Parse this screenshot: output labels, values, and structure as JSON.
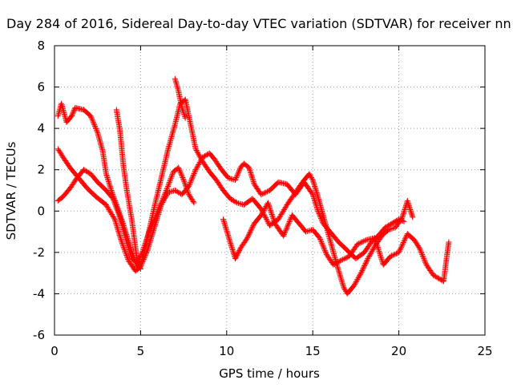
{
  "chart_data": {
    "type": "scatter",
    "title": "Day 284 of 2016, Sidereal Day-to-day VTEC variation (SDTVAR) for receiver nn",
    "xlabel": "GPS time / hours",
    "ylabel": "SDTVAR / TECUs",
    "xlim": [
      0,
      25
    ],
    "ylim": [
      -6,
      8
    ],
    "xticks": [
      "0",
      "5",
      "10",
      "15",
      "20",
      "25"
    ],
    "yticks": [
      "-6",
      "-4",
      "-2",
      "0",
      "2",
      "4",
      "6",
      "8"
    ],
    "grid": true,
    "marker": "+",
    "marker_color": "#ff0000",
    "series": [
      {
        "values": [
          [
            0.2,
            0.5
          ],
          [
            0.5,
            0.7
          ],
          [
            0.9,
            1.1
          ],
          [
            1.3,
            1.6
          ],
          [
            1.7,
            2.0
          ],
          [
            2.1,
            1.8
          ],
          [
            2.5,
            1.4
          ],
          [
            3.0,
            1.0
          ],
          [
            3.4,
            0.6
          ],
          [
            3.8,
            -0.3
          ],
          [
            4.2,
            -1.5
          ],
          [
            4.5,
            -2.3
          ],
          [
            4.8,
            -2.5
          ],
          [
            5.1,
            -2.0
          ],
          [
            5.5,
            -1.0
          ],
          [
            6.0,
            0.0
          ],
          [
            6.5,
            1.0
          ],
          [
            6.9,
            1.9
          ],
          [
            7.2,
            2.1
          ],
          [
            7.5,
            1.5
          ],
          [
            7.8,
            0.8
          ],
          [
            8.1,
            0.4
          ]
        ]
      },
      {
        "values": [
          [
            0.2,
            3.0
          ],
          [
            0.5,
            2.6
          ],
          [
            0.9,
            2.1
          ],
          [
            1.4,
            1.6
          ],
          [
            1.9,
            1.1
          ],
          [
            2.4,
            0.7
          ],
          [
            3.0,
            0.3
          ],
          [
            3.5,
            -0.4
          ],
          [
            3.9,
            -1.5
          ],
          [
            4.3,
            -2.4
          ],
          [
            4.7,
            -2.9
          ],
          [
            5.0,
            -2.7
          ],
          [
            5.4,
            -1.9
          ],
          [
            5.8,
            -0.8
          ],
          [
            6.2,
            0.3
          ],
          [
            6.6,
            0.9
          ],
          [
            7.0,
            1.0
          ],
          [
            7.4,
            0.8
          ],
          [
            7.8,
            1.2
          ],
          [
            8.2,
            2.0
          ],
          [
            8.6,
            2.6
          ],
          [
            9.0,
            2.8
          ],
          [
            9.3,
            2.5
          ],
          [
            9.7,
            2.0
          ],
          [
            10.1,
            1.6
          ],
          [
            10.5,
            1.5
          ],
          [
            10.8,
            2.1
          ],
          [
            11.0,
            2.3
          ],
          [
            11.3,
            2.1
          ],
          [
            11.6,
            1.3
          ],
          [
            12.0,
            0.8
          ],
          [
            12.5,
            1.0
          ],
          [
            13.0,
            1.4
          ],
          [
            13.5,
            1.3
          ],
          [
            14.0,
            0.8
          ],
          [
            14.5,
            1.4
          ],
          [
            15.0,
            0.8
          ],
          [
            15.3,
            0.0
          ],
          [
            15.6,
            -0.6
          ],
          [
            16.0,
            -1.0
          ],
          [
            16.5,
            -1.5
          ],
          [
            17.0,
            -1.9
          ],
          [
            17.5,
            -2.3
          ],
          [
            18.0,
            -2.0
          ],
          [
            18.4,
            -1.5
          ],
          [
            18.8,
            -1.2
          ],
          [
            19.2,
            -0.8
          ],
          [
            19.6,
            -0.6
          ],
          [
            20.0,
            -0.4
          ],
          [
            20.3,
            -0.5
          ]
        ]
      },
      {
        "values": [
          [
            0.2,
            4.6
          ],
          [
            0.4,
            5.2
          ],
          [
            0.7,
            4.3
          ],
          [
            1.0,
            4.6
          ],
          [
            1.2,
            5.0
          ],
          [
            1.7,
            4.9
          ],
          [
            2.1,
            4.6
          ],
          [
            2.5,
            3.8
          ],
          [
            2.8,
            2.9
          ],
          [
            3.0,
            1.8
          ],
          [
            3.3,
            1.0
          ],
          [
            3.6,
            0.3
          ],
          [
            3.9,
            -0.4
          ],
          [
            4.2,
            -1.2
          ],
          [
            4.5,
            -2.0
          ],
          [
            4.8,
            -2.7
          ],
          [
            5.1,
            -2.4
          ],
          [
            5.4,
            -1.3
          ],
          [
            5.8,
            0.2
          ],
          [
            6.2,
            1.6
          ],
          [
            6.6,
            3.0
          ],
          [
            7.0,
            4.2
          ],
          [
            7.3,
            5.2
          ],
          [
            7.6,
            5.4
          ],
          [
            7.9,
            4.2
          ],
          [
            8.2,
            3.0
          ],
          [
            8.6,
            2.4
          ],
          [
            9.0,
            1.9
          ],
          [
            9.4,
            1.5
          ],
          [
            9.8,
            1.0
          ],
          [
            10.2,
            0.6
          ],
          [
            10.6,
            0.4
          ],
          [
            11.0,
            0.3
          ],
          [
            11.5,
            0.6
          ],
          [
            12.0,
            0.1
          ],
          [
            12.5,
            -0.7
          ],
          [
            13.0,
            -0.4
          ],
          [
            13.5,
            0.3
          ],
          [
            14.0,
            0.9
          ],
          [
            14.4,
            1.4
          ],
          [
            14.8,
            1.8
          ],
          [
            15.0,
            1.5
          ],
          [
            15.3,
            0.7
          ],
          [
            15.6,
            -0.2
          ],
          [
            16.0,
            -1.4
          ],
          [
            16.4,
            -2.6
          ],
          [
            16.8,
            -3.7
          ],
          [
            17.0,
            -4.0
          ],
          [
            17.4,
            -3.6
          ],
          [
            17.8,
            -3.0
          ],
          [
            18.2,
            -2.3
          ],
          [
            18.6,
            -1.7
          ],
          [
            19.0,
            -1.2
          ],
          [
            19.4,
            -0.9
          ],
          [
            19.8,
            -0.8
          ],
          [
            20.2,
            -0.3
          ],
          [
            20.5,
            0.5
          ],
          [
            20.8,
            -0.3
          ]
        ]
      },
      {
        "values": [
          [
            3.6,
            4.9
          ],
          [
            3.8,
            3.9
          ],
          [
            4.0,
            2.2
          ],
          [
            4.2,
            1.0
          ],
          [
            4.5,
            -0.5
          ],
          [
            4.8,
            -2.4
          ],
          [
            5.0,
            -2.8
          ],
          [
            7.0,
            6.4
          ],
          [
            7.2,
            5.8
          ],
          [
            7.4,
            5.0
          ],
          [
            7.6,
            4.5
          ],
          [
            9.8,
            -0.4
          ],
          [
            10.2,
            -1.5
          ],
          [
            10.5,
            -2.3
          ],
          [
            10.8,
            -1.8
          ],
          [
            11.2,
            -1.3
          ],
          [
            11.6,
            -0.6
          ],
          [
            12.0,
            -0.2
          ],
          [
            12.4,
            0.4
          ],
          [
            12.8,
            -0.6
          ],
          [
            13.3,
            -1.2
          ],
          [
            13.8,
            -0.2
          ],
          [
            14.2,
            -0.6
          ],
          [
            14.6,
            -1.0
          ],
          [
            15.0,
            -0.9
          ],
          [
            15.4,
            -1.3
          ],
          [
            15.8,
            -2.1
          ],
          [
            16.2,
            -2.6
          ],
          [
            16.6,
            -2.4
          ],
          [
            17.1,
            -2.2
          ],
          [
            17.6,
            -1.6
          ],
          [
            18.1,
            -1.4
          ],
          [
            18.6,
            -1.3
          ],
          [
            19.1,
            -2.6
          ],
          [
            19.5,
            -2.2
          ],
          [
            20.0,
            -2.0
          ],
          [
            20.5,
            -1.1
          ],
          [
            20.9,
            -1.4
          ],
          [
            21.2,
            -1.8
          ],
          [
            21.6,
            -2.6
          ],
          [
            22.0,
            -3.1
          ],
          [
            22.6,
            -3.4
          ],
          [
            22.8,
            -2.1
          ],
          [
            22.9,
            -1.5
          ]
        ]
      }
    ]
  }
}
